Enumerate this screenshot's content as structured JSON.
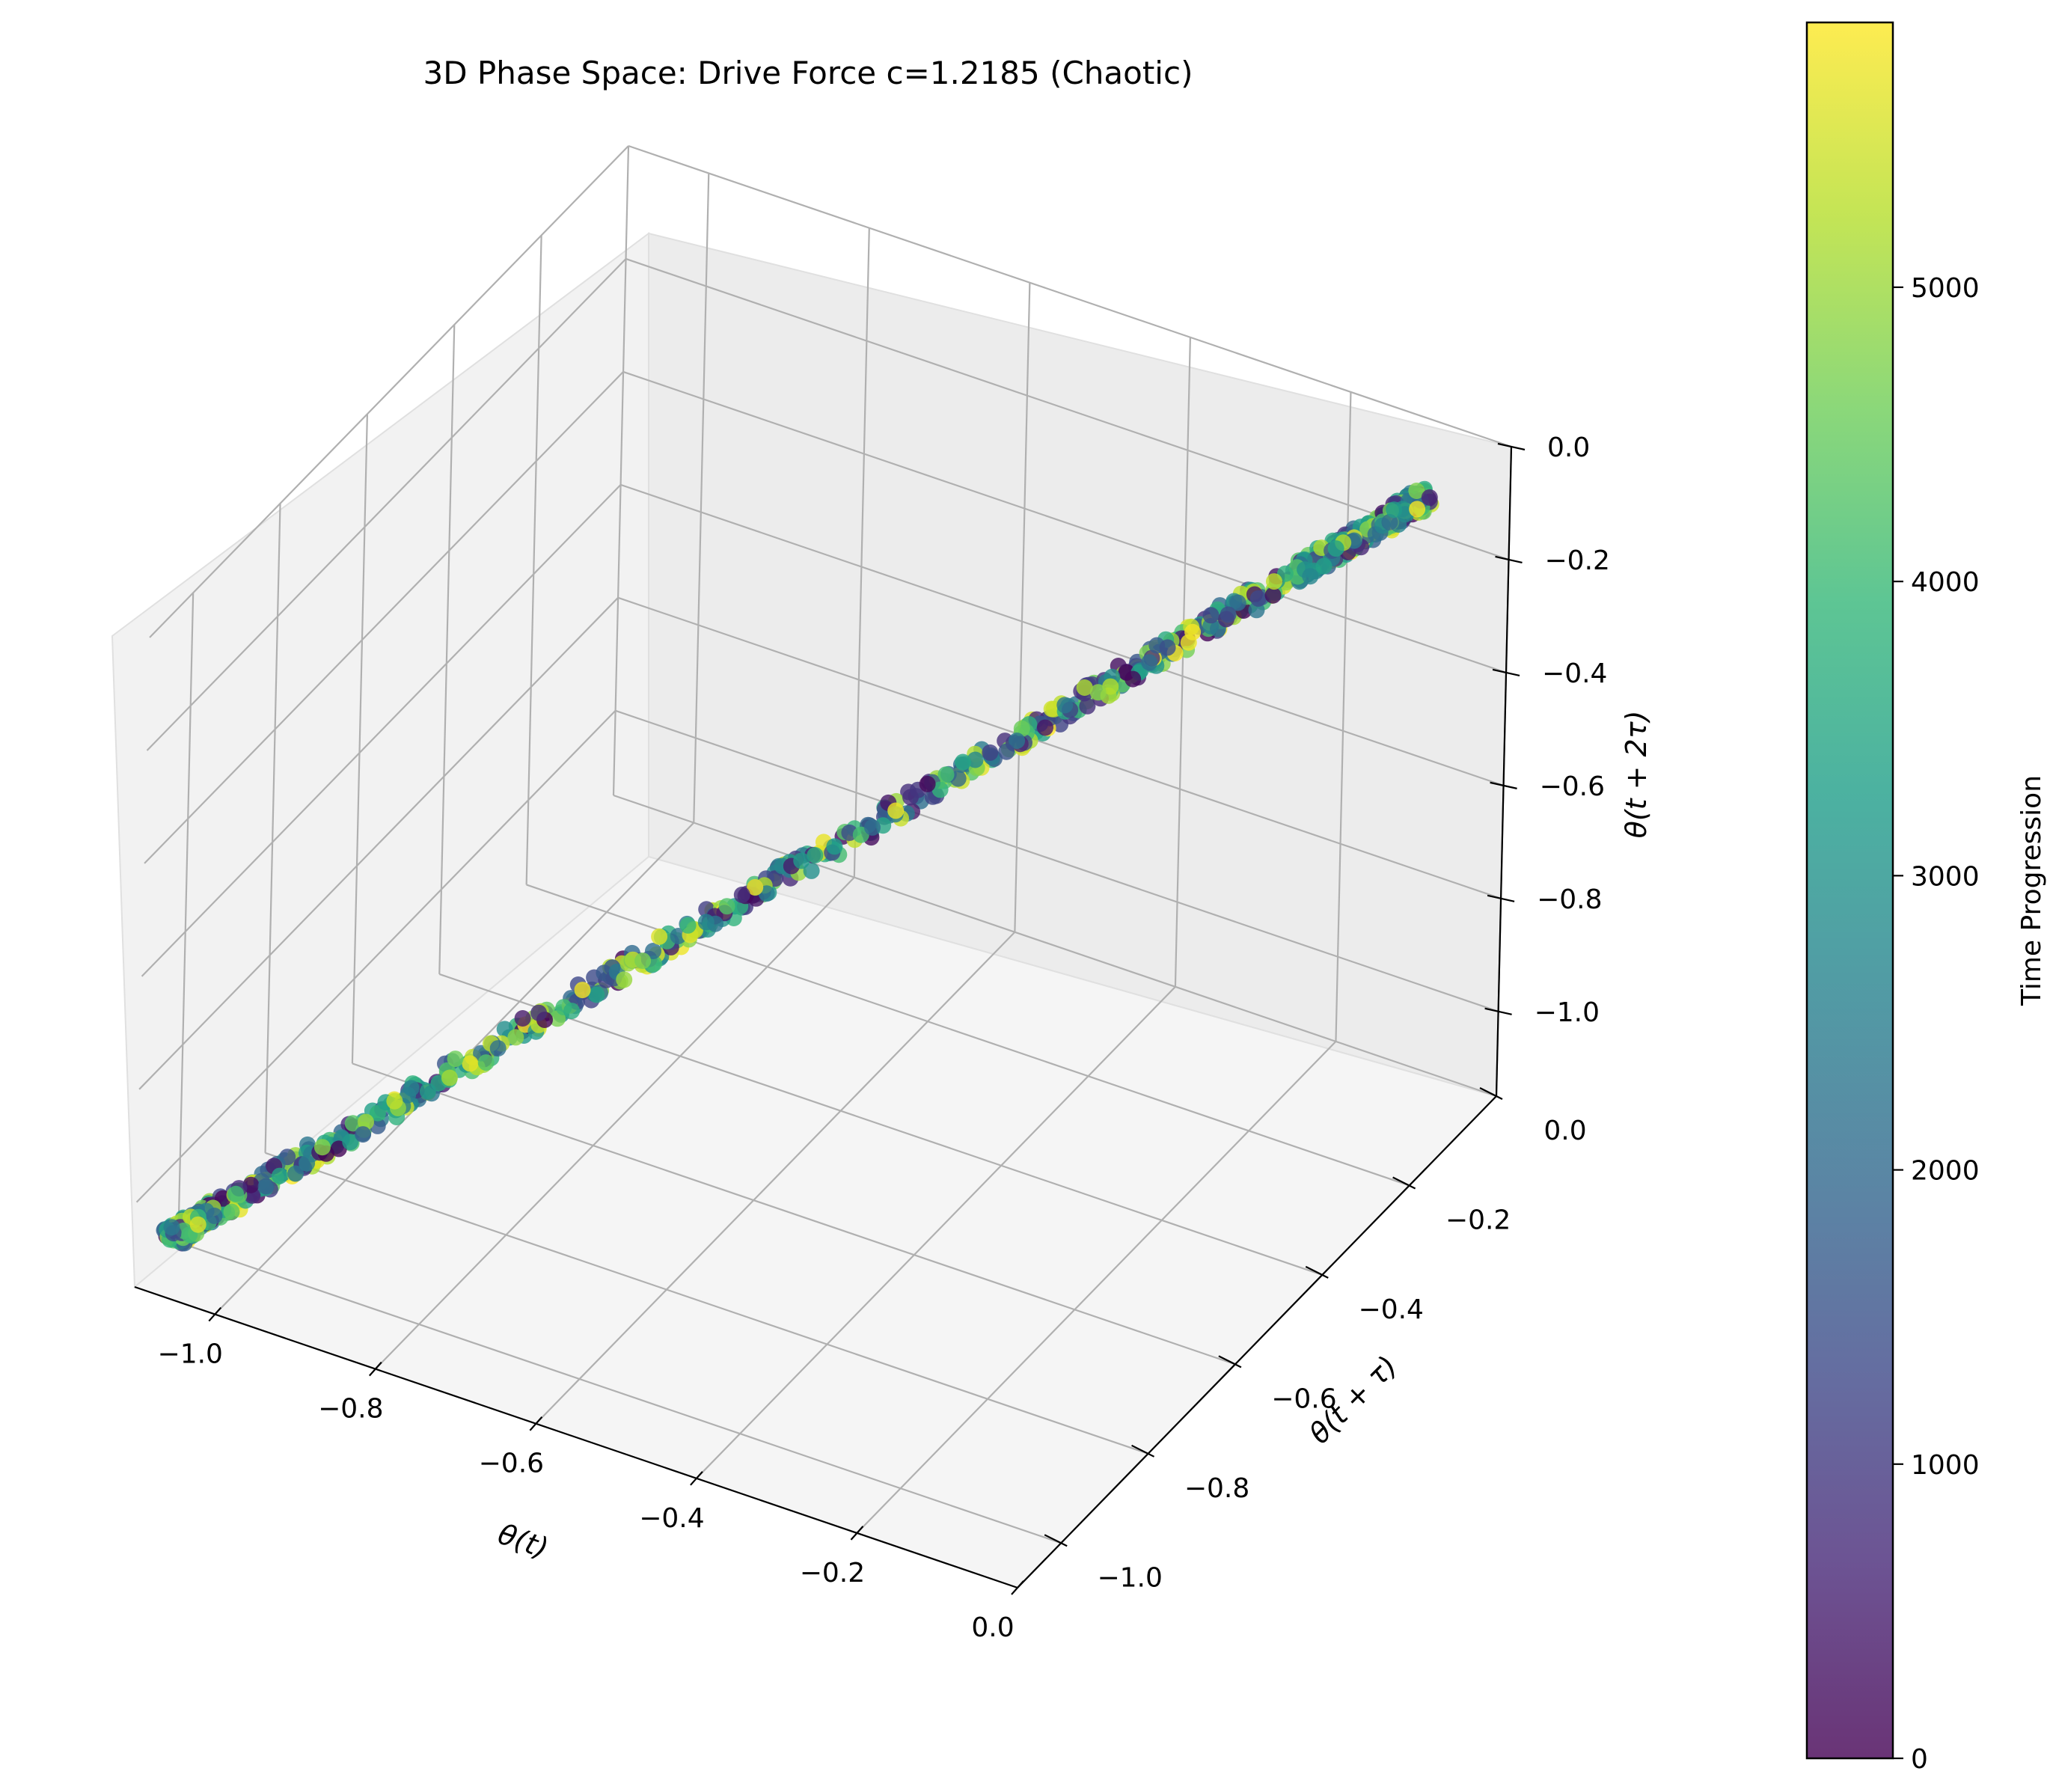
{
  "chart_data": {
    "type": "scatter",
    "projection": "3d",
    "title": "3D Phase Space: Drive Force c=1.2185 (Chaotic)",
    "xlabel": "θ(t)",
    "ylabel": "θ(t + τ)",
    "zlabel": "θ(t + 2τ)",
    "x_ticks": [
      -1.0,
      -0.8,
      -0.6,
      -0.4,
      -0.2,
      0.0
    ],
    "x_tick_labels": [
      "−1.0",
      "−0.8",
      "−0.6",
      "−0.4",
      "−0.2",
      "0.0"
    ],
    "y_ticks": [
      -1.0,
      -0.8,
      -0.6,
      -0.4,
      -0.2,
      0.0
    ],
    "y_tick_labels": [
      "−1.0",
      "−0.8",
      "−0.6",
      "−0.4",
      "−0.2",
      "0.0"
    ],
    "z_ticks": [
      -1.0,
      -0.8,
      -0.6,
      -0.4,
      -0.2,
      0.0
    ],
    "z_tick_labels": [
      "−1.0",
      "−0.8",
      "−0.6",
      "−0.4",
      "−0.2",
      "0.0"
    ],
    "xlim": [
      -1.1,
      0.0
    ],
    "ylim": [
      -1.1,
      0.0
    ],
    "zlim": [
      -1.15,
      0.0
    ],
    "grid": true,
    "marker_alpha": 0.8,
    "trajectory": {
      "description_range": "points lie along the diagonal θ(t) ≈ θ(t+τ) ≈ θ(t+2τ)",
      "theta_range": [
        -1.07,
        -0.07
      ],
      "num_points": 6000,
      "time_range": [
        0,
        6000
      ]
    },
    "colorbar": {
      "label": "Time Progression",
      "colormap": "viridis",
      "range": [
        0,
        5900
      ],
      "ticks": [
        0,
        1000,
        2000,
        3000,
        4000,
        5000
      ],
      "tick_labels": [
        "0",
        "1000",
        "2000",
        "3000",
        "4000",
        "5000"
      ],
      "colors": [
        "#440154",
        "#482878",
        "#3e4989",
        "#31688e",
        "#26828e",
        "#1f9e89",
        "#35b779",
        "#6ece58",
        "#b5de2b",
        "#fde725"
      ]
    }
  }
}
